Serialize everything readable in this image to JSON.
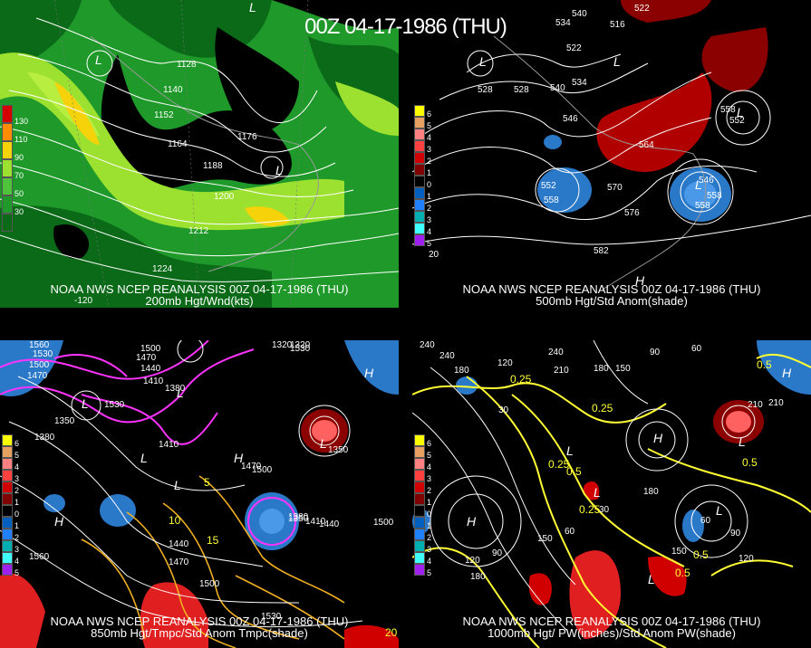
{
  "title": "00Z 04-17-1986 (THU)",
  "panels": [
    {
      "id": "p200",
      "caption1": "NOAA NWS NCEP REANALYSIS 00Z 04-17-1986 (THU)",
      "caption2": "200mb Hgt/Wnd(kts)",
      "legend": [
        "130",
        "110",
        "90",
        "70",
        "50",
        "30"
      ],
      "legend_colors": [
        "#d40000",
        "#ff8c00",
        "#f5d20a",
        "#9ce030",
        "#4fc33a",
        "#1f9a2a"
      ],
      "contour_labels": [
        "1128",
        "1140",
        "1152",
        "1164",
        "1176",
        "1188",
        "1200",
        "1212",
        "1224"
      ],
      "highs_lows": [
        "L",
        "L",
        "L"
      ],
      "corner_labels": [
        "-120"
      ]
    },
    {
      "id": "p500",
      "caption1": "NOAA NWS NCEP REANALYSIS 00Z 04-17-1986 (THU)",
      "caption2": "500mb Hgt/Std Anom(shade)",
      "legend": [
        "6",
        "5",
        "4",
        "3",
        "2",
        "1",
        "0",
        "1",
        "2",
        "3",
        "4",
        "5"
      ],
      "legend_colors": [
        "#ffff00",
        "#e8a060",
        "#ff8080",
        "#ff4040",
        "#d00000",
        "#800000",
        "#000000",
        "#0060c0",
        "#2080ff",
        "#00b0b0",
        "#40ffff",
        "#a020f0"
      ],
      "contour_labels": [
        "534",
        "540",
        "516",
        "522",
        "522",
        "528",
        "534",
        "528",
        "540",
        "546",
        "558",
        "552",
        "564",
        "552",
        "558",
        "570",
        "558",
        "546",
        "558",
        "576",
        "582",
        "20"
      ],
      "highs_lows": [
        "L",
        "L",
        "L",
        "L",
        "H"
      ]
    },
    {
      "id": "p850",
      "caption1": "NOAA NWS NCEP REANALYSIS 00Z 04-17-1986 (THU)",
      "caption2": "850mb Hgt/Tmpc/Std Anom Tmpc(shade)",
      "legend": [
        "6",
        "5",
        "4",
        "3",
        "2",
        "1",
        "0",
        "1",
        "2",
        "3",
        "4",
        "5"
      ],
      "legend_colors": [
        "#ffff00",
        "#e8a060",
        "#ff8080",
        "#ff4040",
        "#d00000",
        "#800000",
        "#000000",
        "#0060c0",
        "#2080ff",
        "#00b0b0",
        "#40ffff",
        "#a020f0"
      ],
      "contour_labels": [
        "1560",
        "1530",
        "1500",
        "1470",
        "1350",
        "1380",
        "1410",
        "1440",
        "1500",
        "1470",
        "1380",
        "1410",
        "1500",
        "1530",
        "1320",
        "1350",
        "1380",
        "1410",
        "1440",
        "1470",
        "1500",
        "1530",
        "1560",
        "1440",
        "1470",
        "1500",
        "1530",
        "1320",
        "1350"
      ],
      "yellow_labels": [
        "10",
        "15",
        "5",
        "20"
      ],
      "highs_lows": [
        "H",
        "L",
        "L",
        "L",
        "L",
        "H",
        "H",
        "L"
      ]
    },
    {
      "id": "p1000",
      "caption1": "NOAA NWS NCEP REANALYSIS 00Z 04-17-1986 (THU)",
      "caption2": "1000mb Hgt/ PW(inches)/Std Anom PW(shade)",
      "legend": [
        "6",
        "5",
        "4",
        "3",
        "2",
        "1",
        "0",
        "1",
        "2",
        "3",
        "4",
        "5"
      ],
      "legend_colors": [
        "#ffff00",
        "#e8a060",
        "#ff8080",
        "#ff4040",
        "#d00000",
        "#800000",
        "#000000",
        "#0060c0",
        "#2080ff",
        "#00b0b0",
        "#40ffff",
        "#a020f0"
      ],
      "contour_labels": [
        "240",
        "180",
        "120",
        "210",
        "180",
        "150",
        "90",
        "60",
        "30",
        "210",
        "240",
        "180",
        "150",
        "120",
        "90",
        "60",
        "30",
        "180",
        "210",
        "240",
        "150",
        "120",
        "90",
        "60"
      ],
      "yellow_labels": [
        "0.25",
        "0.25",
        "0.25",
        "0.5",
        "0.25",
        "0.5",
        "0.5",
        "0.5",
        "0.5"
      ],
      "highs_lows": [
        "H",
        "L",
        "L",
        "L",
        "H",
        "L",
        "H",
        "L"
      ]
    }
  ]
}
